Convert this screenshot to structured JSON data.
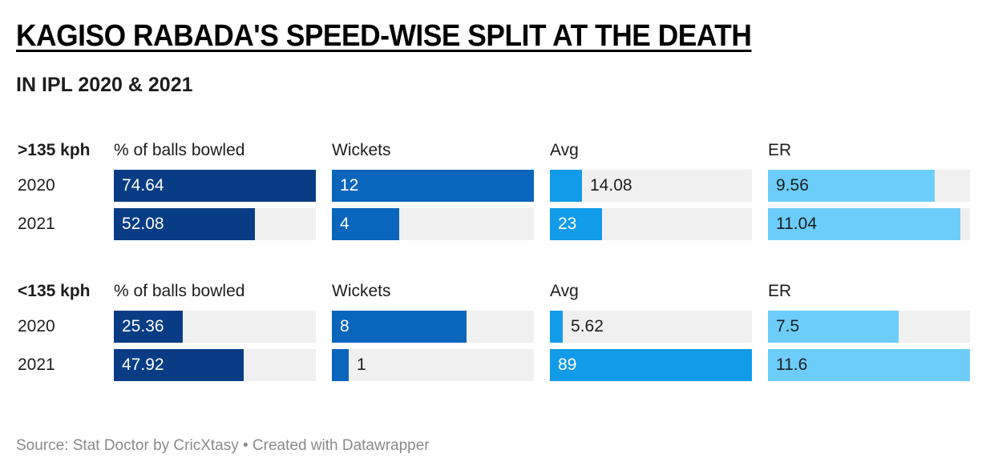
{
  "title": "KAGISO RABADA'S SPEED-WISE SPLIT AT THE DEATH",
  "subtitle": "IN IPL 2020 & 2021",
  "source": "Source: Stat Doctor by CricXtasy • Created with Datawrapper",
  "colors": {
    "pct": "#083d85",
    "wickets": "#0a65bd",
    "avg": "#129be8",
    "er": "#6ccdfb",
    "background": "#f0f0f0"
  },
  "chart_data": {
    "type": "bar",
    "columns": [
      "% of balls bowled",
      "Wickets",
      "Avg",
      "ER"
    ],
    "groups": [
      {
        "label": ">135 kph",
        "rows": [
          {
            "year": "2020",
            "values": [
              74.64,
              12,
              14.08,
              9.56
            ]
          },
          {
            "year": "2021",
            "values": [
              52.08,
              4,
              23,
              11.04
            ]
          }
        ]
      },
      {
        "label": "<135 kph",
        "rows": [
          {
            "year": "2020",
            "values": [
              25.36,
              8,
              5.62,
              7.5
            ]
          },
          {
            "year": "2021",
            "values": [
              47.92,
              1,
              89,
              11.6
            ]
          }
        ]
      }
    ],
    "column_max": [
      74.64,
      12,
      89,
      11.6
    ]
  }
}
